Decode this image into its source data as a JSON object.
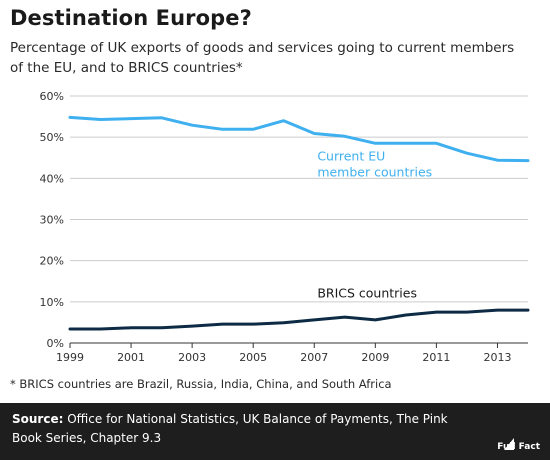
{
  "title": "Destination Europe?",
  "subtitle": "Percentage of UK exports of goods and services going to current members of the EU, and to BRICS countries*",
  "footnote": "* BRICS countries are Brazil, Russia, India, China, and South Africa",
  "source_label": "Source:",
  "source_text": "Office for National Statistics, UK Balance of Payments, The Pink Book Series, Chapter 9.3",
  "logo_text": "Full Fact",
  "colors": {
    "eu": "#3fb0ef",
    "brics": "#0e2b45",
    "grid": "#cccccc",
    "footer": "#1e1e1e"
  },
  "chart_data": {
    "type": "line",
    "x": [
      1999,
      2000,
      2001,
      2002,
      2003,
      2004,
      2005,
      2006,
      2007,
      2008,
      2009,
      2010,
      2011,
      2012,
      2013,
      2014
    ],
    "x_ticks": [
      1999,
      2001,
      2003,
      2005,
      2007,
      2009,
      2011,
      2013
    ],
    "ylim": [
      0,
      60
    ],
    "y_ticks": [
      0,
      10,
      20,
      30,
      40,
      50,
      60
    ],
    "y_tick_labels": [
      "0%",
      "10%",
      "20%",
      "30%",
      "40%",
      "50%",
      "60%"
    ],
    "grid": true,
    "legend": "inline labels",
    "series": [
      {
        "name": "Current EU member countries",
        "label_lines": [
          "Current EU",
          "member countries"
        ],
        "color": "#3fb0ef",
        "values": [
          54.8,
          54.3,
          54.5,
          54.7,
          52.9,
          51.9,
          51.9,
          54.0,
          50.9,
          50.2,
          48.5,
          48.5,
          48.5,
          46.1,
          44.4,
          44.3
        ]
      },
      {
        "name": "BRICS countries",
        "label_lines": [
          "BRICS countries"
        ],
        "color": "#0e2b45",
        "values": [
          3.4,
          3.4,
          3.7,
          3.7,
          4.1,
          4.6,
          4.6,
          4.9,
          5.6,
          6.3,
          5.6,
          6.8,
          7.5,
          7.5,
          8.0,
          8.0
        ]
      }
    ]
  }
}
